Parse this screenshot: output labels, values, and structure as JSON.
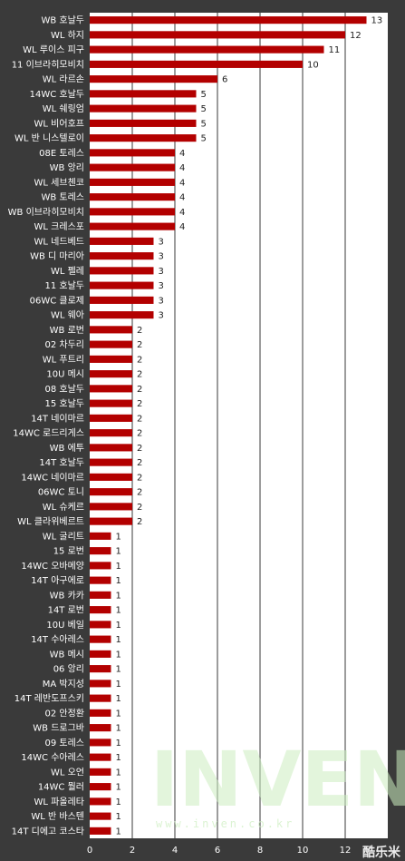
{
  "chart_data": {
    "type": "bar",
    "orientation": "horizontal",
    "categories": [
      "WB 호날두",
      "WL 하지",
      "WL 루이스 피구",
      "11 이브라히모비치",
      "WL 라르손",
      "14WC 호날두",
      "WL 쉐링엄",
      "WL 비어호프",
      "WL 반 니스텔로이",
      "08E 토레스",
      "WB 앙리",
      "WL 세브첸코",
      "WB 토레스",
      "WB 이브라히모비치",
      "WL 크레스포",
      "WL 네드베드",
      "WB 디 마리아",
      "WL 펠레",
      "11 호날두",
      "06WC 클로제",
      "WL 웨아",
      "WB 로번",
      "02 차두리",
      "WL 푸트리",
      "10U 메시",
      "08 호날두",
      "15 호날두",
      "14T 네이마르",
      "14WC 로드리게스",
      "WB 에투",
      "14T 호날두",
      "14WC 네이마르",
      "06WC 토니",
      "WL 슈케르",
      "WL 클라위베르트",
      "WL 굴리트",
      "15 로번",
      "14WC 오바메양",
      "14T 아구에로",
      "WB 카카",
      "14T 로번",
      "10U 베일",
      "14T 수아레스",
      "WB 메시",
      "06 앙리",
      "MA 박지성",
      "14T 레반도프스키",
      "02 안정환",
      "WB 드로그바",
      "09 토레스",
      "14WC 수아레스",
      "WL 오언",
      "14WC 뭘러",
      "WL 파올레타",
      "WL 반 바스텐",
      "14T 디에고 코스타"
    ],
    "values": [
      13,
      12,
      11,
      10,
      6,
      5,
      5,
      5,
      5,
      4,
      4,
      4,
      4,
      4,
      4,
      3,
      3,
      3,
      3,
      3,
      3,
      2,
      2,
      2,
      2,
      2,
      2,
      2,
      2,
      2,
      2,
      2,
      2,
      2,
      2,
      1,
      1,
      1,
      1,
      1,
      1,
      1,
      1,
      1,
      1,
      1,
      1,
      1,
      1,
      1,
      1,
      1,
      1,
      1,
      1,
      1
    ],
    "xlim": [
      0,
      14
    ],
    "xticks": [
      0,
      2,
      4,
      6,
      8,
      10,
      12
    ],
    "xtick_labels": [
      "0",
      "2",
      "4",
      "6",
      "8",
      "10",
      "12"
    ],
    "grid": true,
    "bar_color": "#b30000",
    "background_color": "#3a3a3a",
    "plot_background_color": "#ffffff",
    "grid_color": "#3a3a3a"
  },
  "watermark": {
    "brand": "INVEN",
    "url": "www.inven.co.kr",
    "corner": "酷乐米"
  }
}
